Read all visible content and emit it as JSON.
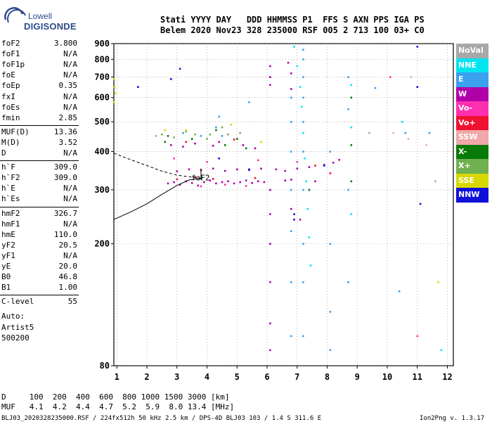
{
  "logo": {
    "line1": "Lowell",
    "line2": "DIGISONDE"
  },
  "header": {
    "line1": "Stati YYYY DAY   DDD HHMMSS P1  FFS S AXN PPS IGA PS",
    "line2": "Belem 2020 Nov23 328 235000 RSF 005 2 713 100 03+ C0"
  },
  "params": [
    {
      "name": "foF2",
      "value": "3.800"
    },
    {
      "name": "foF1",
      "value": "N/A"
    },
    {
      "name": "foF1p",
      "value": "N/A"
    },
    {
      "name": "foE",
      "value": "N/A"
    },
    {
      "name": "foEp",
      "value": "0.35"
    },
    {
      "name": "fxI",
      "value": "N/A"
    },
    {
      "name": "foEs",
      "value": "N/A"
    },
    {
      "name": "fmin",
      "value": "2.85"
    },
    {
      "name": "MUF(D)",
      "value": "13.36"
    },
    {
      "name": "M(D)",
      "value": "3.52"
    },
    {
      "name": "D",
      "value": "N/A"
    },
    {
      "name": "h`F",
      "value": "309.0"
    },
    {
      "name": "h`F2",
      "value": "309.0"
    },
    {
      "name": "h`E",
      "value": "N/A"
    },
    {
      "name": "h`Es",
      "value": "N/A"
    },
    {
      "name": "hmF2",
      "value": "326.7"
    },
    {
      "name": "hmF1",
      "value": "N/A"
    },
    {
      "name": "hmE",
      "value": "110.0"
    },
    {
      "name": "yF2",
      "value": "20.5"
    },
    {
      "name": "yF1",
      "value": "N/A"
    },
    {
      "name": "yE",
      "value": "20.0"
    },
    {
      "name": "B0",
      "value": "46.8"
    },
    {
      "name": "B1",
      "value": "1.00"
    },
    {
      "name": "C-level",
      "value": "55"
    }
  ],
  "notes": {
    "auto": "Auto:",
    "artist": "Artist5",
    "version": "500200"
  },
  "legend": [
    {
      "label": "NoVal",
      "color": "#a8a8a8"
    },
    {
      "label": "NNE",
      "color": "#00e5f0"
    },
    {
      "label": "E",
      "color": "#3aa0f0"
    },
    {
      "label": "W",
      "color": "#b000a8"
    },
    {
      "label": "Vo-",
      "color": "#ff30b0"
    },
    {
      "label": "Vo+",
      "color": "#f01030"
    },
    {
      "label": "SSW",
      "color": "#f0a8a8"
    },
    {
      "label": "X-",
      "color": "#087a08"
    },
    {
      "label": "X+",
      "color": "#70b050"
    },
    {
      "label": "SSE",
      "color": "#d8d800"
    },
    {
      "label": "NNW",
      "color": "#1010d8"
    }
  ],
  "footer": {
    "line1": "D     100  200  400  600  800 1000 1500 3000 [km]",
    "line2": "MUF   4.1  4.2  4.4  4.7  5.2  5.9  8.0 13.4 [MHz]",
    "line3": "BLJ03_2020328235000.RSF / 224fx512h 50 kHz 2.5 km / DPS-4D BLJ03 103 / 1.4 S 311.6 E",
    "credit": "Ion2Png v. 1.3.17"
  },
  "chart_data": {
    "type": "scatter",
    "xlim": [
      0.9,
      12.2
    ],
    "ylim": [
      80,
      900
    ],
    "xticks": [
      "1",
      "2",
      "3",
      "4",
      "5",
      "6",
      "7",
      "8",
      "9",
      "10",
      "11",
      "12"
    ],
    "yticks": [
      "80",
      "200",
      "300",
      "400",
      "500",
      "600",
      "700",
      "800",
      "900"
    ],
    "ytick_values": [
      80,
      200,
      300,
      400,
      500,
      600,
      700,
      800,
      900
    ],
    "y_scale": "log",
    "grid": "dotted",
    "annotation": "foF2",
    "traces": [
      {
        "color": "#b000a8",
        "points": [
          [
            2.7,
            315
          ],
          [
            2.9,
            318
          ],
          [
            3.1,
            312
          ],
          [
            3.3,
            320
          ],
          [
            3.5,
            316
          ],
          [
            3.7,
            310
          ],
          [
            3.9,
            318
          ],
          [
            4.1,
            322
          ],
          [
            4.3,
            315
          ],
          [
            4.5,
            318
          ],
          [
            4.7,
            320
          ],
          [
            4.9,
            315
          ],
          [
            5.1,
            318
          ],
          [
            5.3,
            322
          ],
          [
            5.5,
            316
          ],
          [
            5.7,
            320
          ],
          [
            5.9,
            318
          ],
          [
            6.6,
            322
          ],
          [
            6.8,
            324
          ],
          [
            7.6,
            320
          ],
          [
            3.0,
            345
          ],
          [
            3.4,
            350
          ],
          [
            3.8,
            348
          ],
          [
            4.2,
            352
          ],
          [
            4.6,
            346
          ],
          [
            5.0,
            350
          ],
          [
            5.4,
            348
          ],
          [
            5.8,
            352
          ],
          [
            6.3,
            350
          ],
          [
            6.6,
            346
          ],
          [
            7.0,
            352
          ],
          [
            7.4,
            356
          ],
          [
            7.9,
            362
          ],
          [
            8.2,
            368
          ],
          [
            8.4,
            376
          ],
          [
            2.8,
            420
          ],
          [
            3.2,
            415
          ],
          [
            3.6,
            425
          ],
          [
            4.2,
            418
          ],
          [
            4.4,
            430
          ],
          [
            5.2,
            420
          ],
          [
            5.6,
            410
          ],
          [
            6.1,
            300
          ],
          [
            6.1,
            250
          ],
          [
            6.1,
            200
          ],
          [
            6.1,
            150
          ],
          [
            6.1,
            110
          ],
          [
            6.1,
            90
          ],
          [
            6.1,
            660
          ],
          [
            6.1,
            700
          ],
          [
            6.1,
            760
          ],
          [
            6.8,
            640
          ],
          [
            6.8,
            720
          ],
          [
            6.7,
            780
          ],
          [
            6.8,
            260
          ],
          [
            7.1,
            240
          ]
        ]
      },
      {
        "color": "#3aa0f0",
        "points": [
          [
            4.3,
            480
          ],
          [
            4.4,
            520
          ],
          [
            4.5,
            450
          ],
          [
            3.8,
            450
          ],
          [
            3.2,
            460
          ],
          [
            5.4,
            580
          ],
          [
            6.8,
            600
          ],
          [
            6.8,
            500
          ],
          [
            6.8,
            400
          ],
          [
            6.8,
            300
          ],
          [
            6.8,
            220
          ],
          [
            6.8,
            150
          ],
          [
            6.8,
            100
          ],
          [
            7.2,
            860
          ],
          [
            7.2,
            800
          ],
          [
            7.2,
            700
          ],
          [
            7.2,
            600
          ],
          [
            7.2,
            500
          ],
          [
            7.2,
            400
          ],
          [
            7.2,
            300
          ],
          [
            7.2,
            200
          ],
          [
            7.2,
            150
          ],
          [
            7.2,
            100
          ],
          [
            8.1,
            400
          ],
          [
            8.1,
            200
          ],
          [
            8.1,
            120
          ],
          [
            8.1,
            90
          ],
          [
            8.7,
            700
          ],
          [
            8.7,
            550
          ],
          [
            8.7,
            300
          ],
          [
            8.7,
            150
          ],
          [
            10.6,
            460
          ],
          [
            10.4,
            140
          ],
          [
            11.4,
            460
          ],
          [
            9.6,
            645
          ]
        ]
      },
      {
        "color": "#00e5f0",
        "points": [
          [
            6.9,
            880
          ],
          [
            7.0,
            760
          ],
          [
            7.1,
            650
          ],
          [
            7.15,
            560
          ],
          [
            7.2,
            460
          ],
          [
            7.25,
            380
          ],
          [
            7.3,
            320
          ],
          [
            7.35,
            260
          ],
          [
            7.4,
            210
          ],
          [
            7.45,
            170
          ],
          [
            8.8,
            660
          ],
          [
            8.8,
            480
          ],
          [
            8.8,
            250
          ],
          [
            10.5,
            500
          ],
          [
            11.8,
            90
          ]
        ]
      },
      {
        "color": "#087a08",
        "points": [
          [
            2.6,
            430
          ],
          [
            2.7,
            450
          ],
          [
            3.5,
            440
          ],
          [
            4.3,
            470
          ],
          [
            4.6,
            420
          ],
          [
            5.0,
            440
          ],
          [
            5.3,
            410
          ],
          [
            7.4,
            300
          ],
          [
            8.8,
            600
          ],
          [
            8.8,
            420
          ],
          [
            8.8,
            320
          ]
        ]
      },
      {
        "color": "#70b050",
        "points": [
          [
            2.5,
            455
          ],
          [
            2.9,
            445
          ],
          [
            3.3,
            465
          ],
          [
            4.1,
            455
          ],
          [
            4.5,
            480
          ],
          [
            5.1,
            460
          ],
          [
            4.0,
            440
          ],
          [
            3.6,
            455
          ],
          [
            4.7,
            455
          ]
        ]
      },
      {
        "color": "#d8d800",
        "points": [
          [
            0.9,
            690
          ],
          [
            0.92,
            650
          ],
          [
            0.95,
            620
          ],
          [
            0.9,
            580
          ],
          [
            2.6,
            470
          ],
          [
            3.3,
            470
          ],
          [
            4.8,
            490
          ],
          [
            11.7,
            150
          ],
          [
            5.8,
            430
          ]
        ]
      },
      {
        "color": "#f01030",
        "points": [
          [
            3.0,
            325
          ],
          [
            3.6,
            330
          ],
          [
            4.2,
            326
          ],
          [
            5.6,
            328
          ],
          [
            3.3,
            430
          ],
          [
            4.9,
            438
          ],
          [
            8.1,
            340
          ],
          [
            7.6,
            360
          ]
        ]
      },
      {
        "color": "#ff30b0",
        "points": [
          [
            3.8,
            308
          ],
          [
            4.6,
            312
          ],
          [
            5.3,
            309
          ],
          [
            2.9,
            380
          ],
          [
            4.0,
            370
          ],
          [
            5.7,
            375
          ],
          [
            7.0,
            370
          ],
          [
            10.1,
            700
          ],
          [
            11.0,
            100
          ]
        ]
      },
      {
        "color": "#1010d8",
        "points": [
          [
            2.8,
            690
          ],
          [
            11.0,
            880
          ],
          [
            11.0,
            650
          ],
          [
            11.1,
            270
          ],
          [
            6.9,
            240
          ],
          [
            6.9,
            250
          ],
          [
            7.9,
            360
          ],
          [
            3.1,
            745
          ],
          [
            5.4,
            350
          ],
          [
            4.4,
            380
          ],
          [
            1.7,
            650
          ]
        ]
      },
      {
        "color": "#f0a8a8",
        "points": [
          [
            10.7,
            440
          ],
          [
            10.2,
            460
          ],
          [
            11.3,
            420
          ],
          [
            10.8,
            700
          ]
        ]
      },
      {
        "color": "#a8a8a8",
        "points": [
          [
            9.4,
            460
          ],
          [
            11.6,
            320
          ],
          [
            2.3,
            450
          ]
        ]
      }
    ],
    "profile": {
      "x": [
        0.9,
        1.5,
        2.0,
        2.5,
        3.0,
        3.4,
        3.8
      ],
      "y": [
        240,
        255,
        270,
        290,
        310,
        323,
        327
      ]
    },
    "profile_dashed": {
      "x": [
        0.9,
        1.5,
        2.0,
        2.5,
        3.0,
        3.5,
        3.8
      ],
      "y": [
        395,
        375,
        360,
        345,
        335,
        330,
        327
      ]
    }
  }
}
